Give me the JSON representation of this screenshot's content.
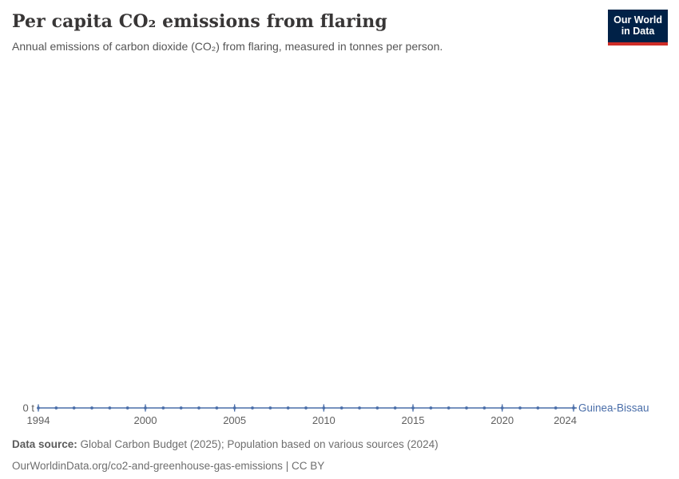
{
  "header": {
    "title": "Per capita CO₂ emissions from flaring",
    "subtitle": "Annual emissions of carbon dioxide (CO₂) from flaring, measured in tonnes per person.",
    "logo": {
      "line1": "Our World",
      "line2": "in Data"
    }
  },
  "chart_data": {
    "type": "line",
    "title": "Per capita CO₂ emissions from flaring",
    "xlabel": "",
    "ylabel": "",
    "x": [
      1994,
      1995,
      1996,
      1997,
      1998,
      1999,
      2000,
      2001,
      2002,
      2003,
      2004,
      2005,
      2006,
      2007,
      2008,
      2009,
      2010,
      2011,
      2012,
      2013,
      2014,
      2015,
      2016,
      2017,
      2018,
      2019,
      2020,
      2021,
      2022,
      2023,
      2024
    ],
    "x_ticks": [
      1994,
      2000,
      2005,
      2010,
      2015,
      2020,
      2024
    ],
    "y_axis": {
      "tick_label": "0 t",
      "min": 0,
      "max": 0,
      "unit": "t"
    },
    "grid": false,
    "legend": "end-of-line-label",
    "series": [
      {
        "name": "Guinea-Bissau",
        "color": "#4a6ea9",
        "values": [
          0,
          0,
          0,
          0,
          0,
          0,
          0,
          0,
          0,
          0,
          0,
          0,
          0,
          0,
          0,
          0,
          0,
          0,
          0,
          0,
          0,
          0,
          0,
          0,
          0,
          0,
          0,
          0,
          0,
          0,
          0
        ]
      }
    ]
  },
  "footer": {
    "source_label": "Data source:",
    "source_text": "Global Carbon Budget (2025); Population based on various sources (2024)",
    "url": "OurWorldinData.org/co2-and-greenhouse-gas-emissions",
    "separator": "|",
    "license": "CC BY"
  },
  "colors": {
    "accent_blue": "#4a6ea9",
    "logo_navy": "#002147",
    "logo_red": "#cf2d27",
    "axis_gray": "#606060"
  }
}
